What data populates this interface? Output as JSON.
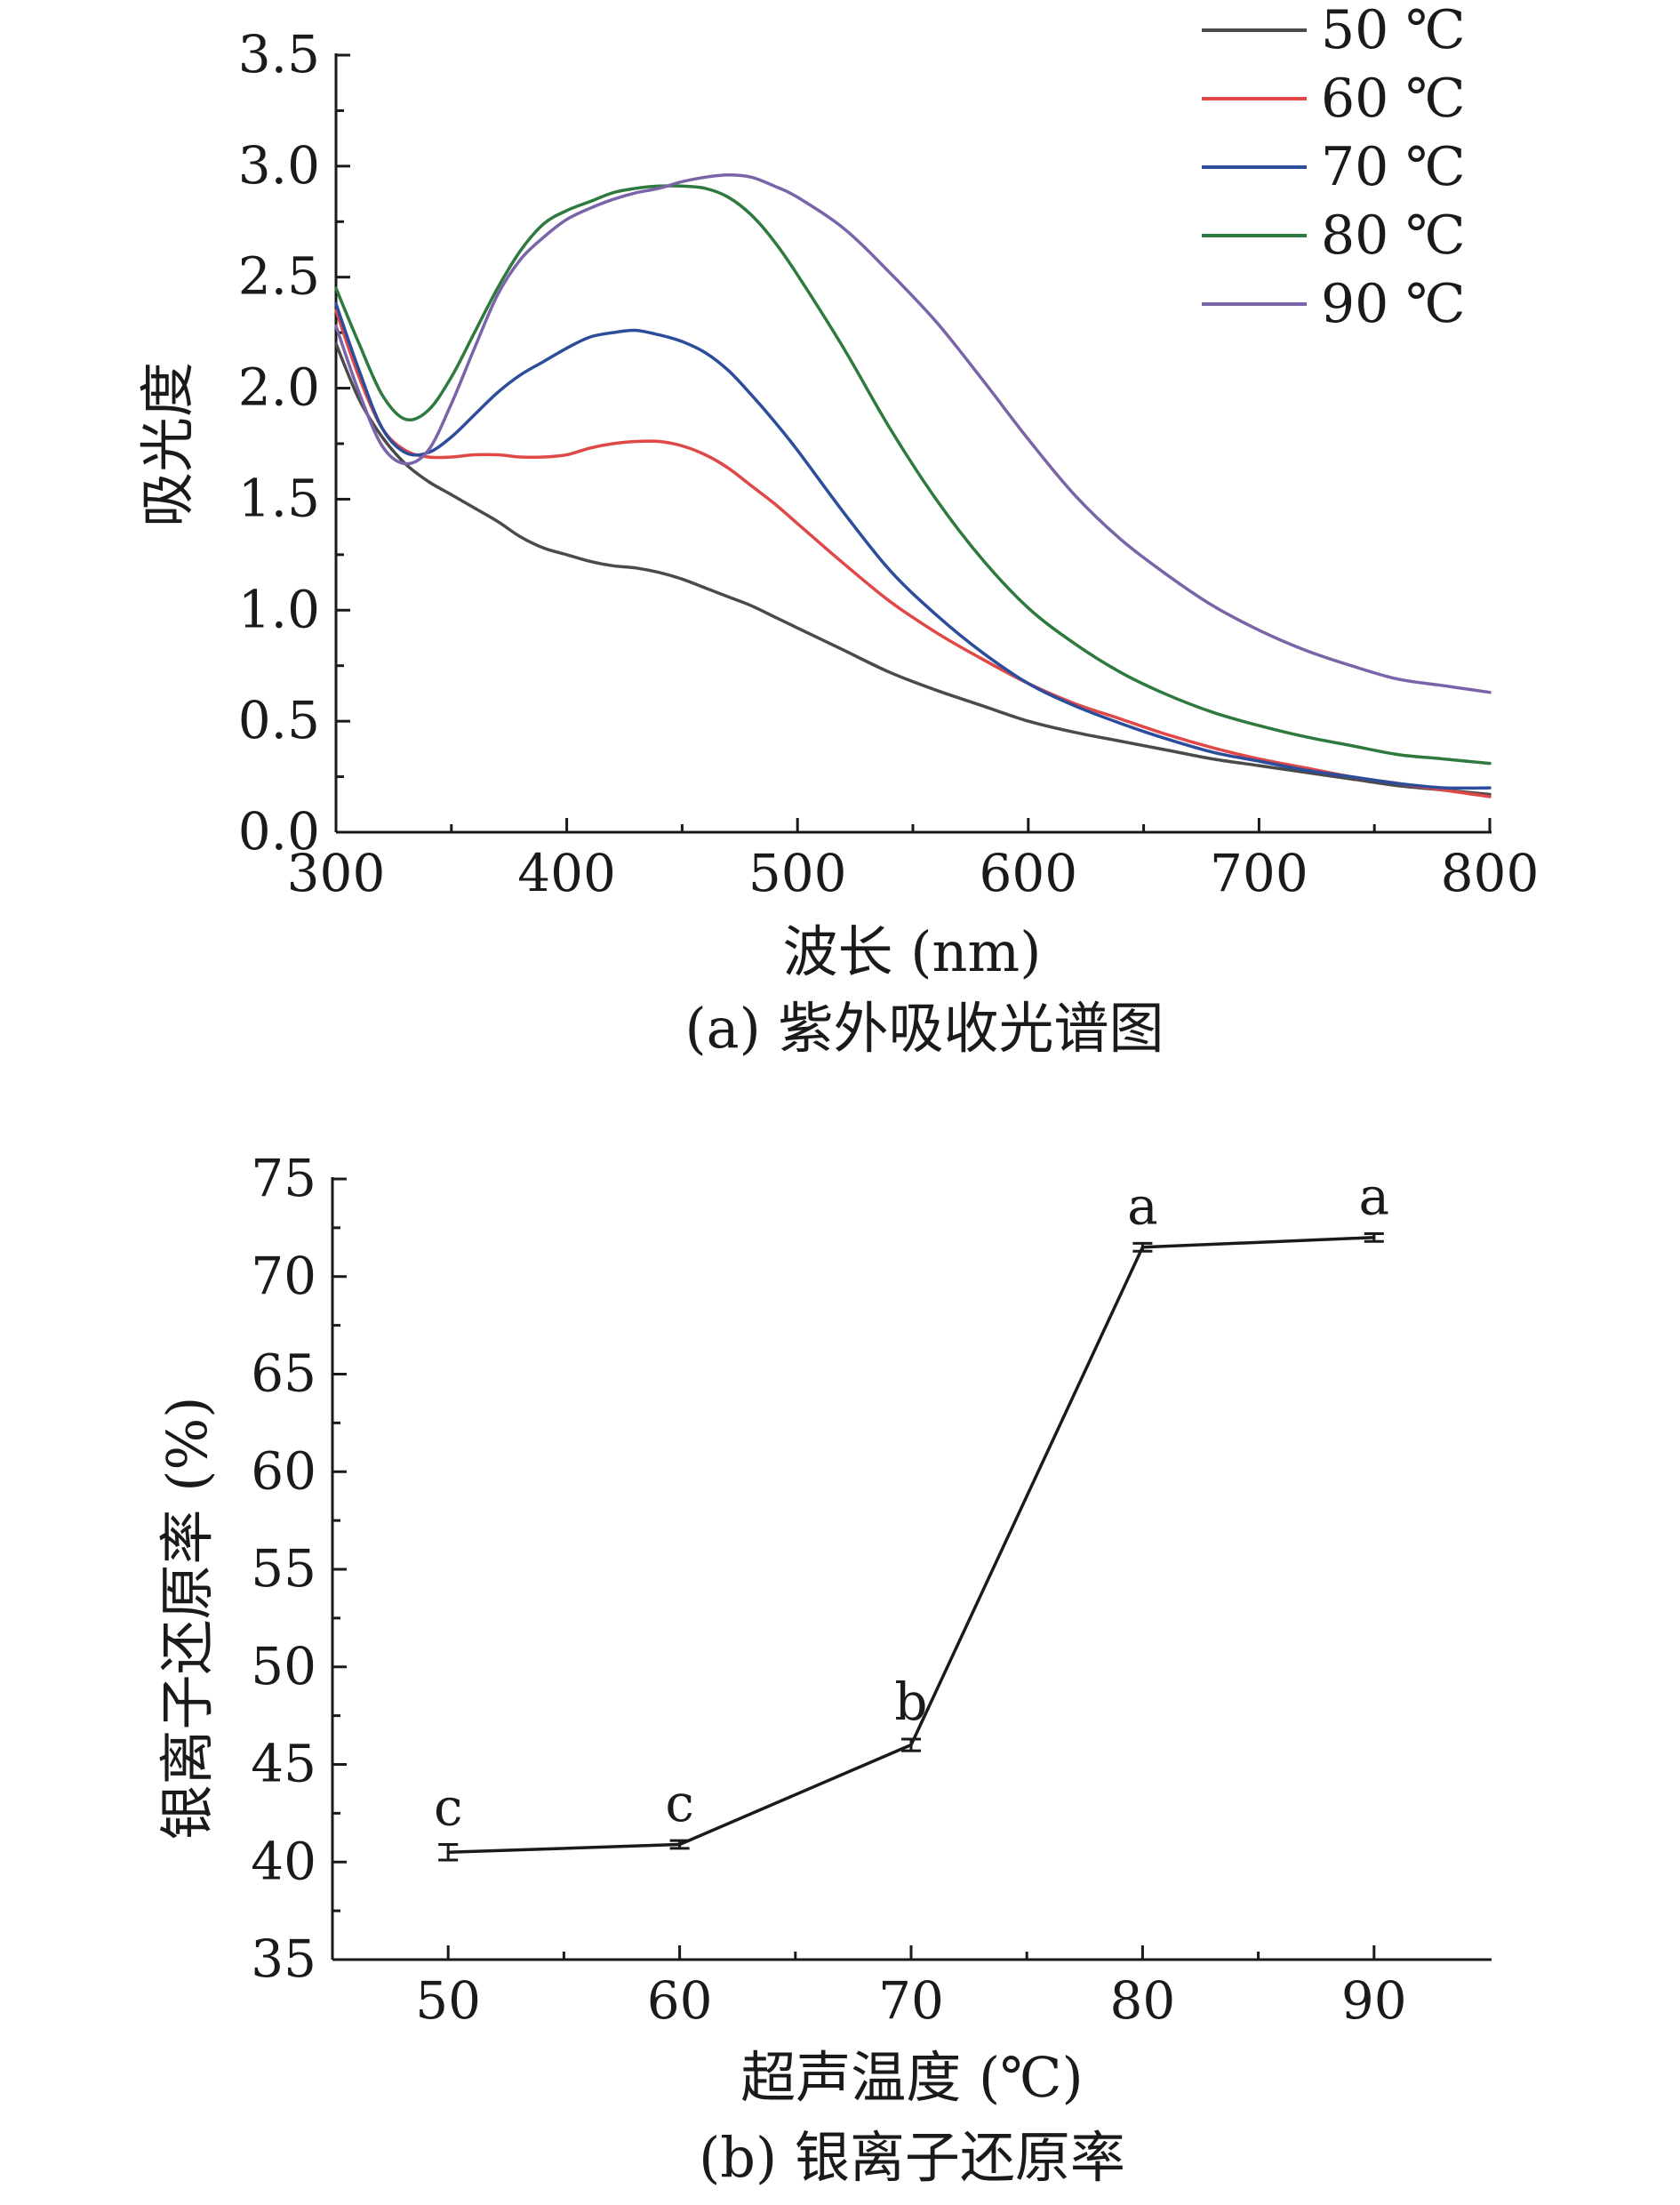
{
  "chart_data": [
    {
      "type": "line",
      "caption": "(a) 紫外吸收光谱图",
      "xlabel": "波长 (nm)",
      "ylabel": "吸光度",
      "xlim": [
        300,
        800
      ],
      "ylim": [
        0,
        3.5
      ],
      "xticks": [
        "300",
        "400",
        "500",
        "600",
        "700",
        "800"
      ],
      "yticks": [
        "0.0",
        "0.5",
        "1.0",
        "1.5",
        "2.0",
        "2.5",
        "3.0",
        "3.5"
      ],
      "legend_position": "top-right",
      "grid": false,
      "series": [
        {
          "name": "50 ℃",
          "color": "#4a4a4a",
          "x": [
            300,
            310,
            320,
            330,
            340,
            350,
            360,
            370,
            380,
            390,
            400,
            410,
            420,
            430,
            440,
            450,
            460,
            470,
            480,
            490,
            500,
            520,
            540,
            560,
            580,
            600,
            620,
            640,
            660,
            680,
            700,
            720,
            740,
            760,
            780,
            800
          ],
          "y": [
            2.2,
            1.95,
            1.78,
            1.66,
            1.58,
            1.52,
            1.46,
            1.4,
            1.33,
            1.28,
            1.25,
            1.22,
            1.2,
            1.19,
            1.17,
            1.14,
            1.1,
            1.06,
            1.02,
            0.97,
            0.92,
            0.82,
            0.72,
            0.64,
            0.57,
            0.5,
            0.45,
            0.41,
            0.37,
            0.33,
            0.3,
            0.27,
            0.24,
            0.21,
            0.19,
            0.17
          ]
        },
        {
          "name": "60 ℃",
          "color": "#e04848",
          "x": [
            300,
            310,
            320,
            330,
            340,
            350,
            360,
            370,
            380,
            390,
            400,
            410,
            420,
            430,
            440,
            450,
            460,
            470,
            480,
            490,
            500,
            520,
            540,
            560,
            580,
            600,
            620,
            640,
            660,
            680,
            700,
            720,
            740,
            760,
            780,
            800
          ],
          "y": [
            2.35,
            2.05,
            1.82,
            1.72,
            1.69,
            1.69,
            1.7,
            1.7,
            1.69,
            1.69,
            1.7,
            1.73,
            1.75,
            1.76,
            1.76,
            1.74,
            1.7,
            1.64,
            1.56,
            1.48,
            1.39,
            1.21,
            1.04,
            0.9,
            0.78,
            0.67,
            0.58,
            0.51,
            0.44,
            0.38,
            0.33,
            0.29,
            0.25,
            0.22,
            0.19,
            0.16
          ]
        },
        {
          "name": "70 ℃",
          "color": "#2c4d9c",
          "x": [
            300,
            310,
            320,
            330,
            340,
            350,
            360,
            370,
            380,
            390,
            400,
            410,
            420,
            430,
            440,
            450,
            460,
            470,
            480,
            490,
            500,
            520,
            540,
            560,
            580,
            600,
            620,
            640,
            660,
            680,
            700,
            720,
            740,
            760,
            780,
            800
          ],
          "y": [
            2.38,
            2.08,
            1.82,
            1.71,
            1.71,
            1.78,
            1.88,
            1.98,
            2.06,
            2.12,
            2.18,
            2.23,
            2.25,
            2.26,
            2.24,
            2.21,
            2.16,
            2.08,
            1.97,
            1.85,
            1.72,
            1.44,
            1.18,
            0.98,
            0.81,
            0.67,
            0.57,
            0.49,
            0.42,
            0.36,
            0.32,
            0.28,
            0.25,
            0.22,
            0.2,
            0.2
          ]
        },
        {
          "name": "80 ℃",
          "color": "#2e7a3e",
          "x": [
            300,
            310,
            320,
            330,
            340,
            350,
            360,
            370,
            380,
            390,
            400,
            410,
            420,
            430,
            440,
            450,
            460,
            470,
            480,
            490,
            500,
            520,
            540,
            560,
            580,
            600,
            620,
            640,
            660,
            680,
            700,
            720,
            740,
            760,
            780,
            800
          ],
          "y": [
            2.45,
            2.2,
            1.97,
            1.86,
            1.9,
            2.05,
            2.25,
            2.45,
            2.62,
            2.74,
            2.8,
            2.84,
            2.88,
            2.9,
            2.91,
            2.91,
            2.9,
            2.86,
            2.78,
            2.66,
            2.51,
            2.18,
            1.82,
            1.5,
            1.23,
            1.01,
            0.85,
            0.72,
            0.62,
            0.54,
            0.48,
            0.43,
            0.39,
            0.35,
            0.33,
            0.31
          ]
        },
        {
          "name": "90 ℃",
          "color": "#7a64a8",
          "x": [
            300,
            310,
            320,
            330,
            340,
            350,
            360,
            370,
            380,
            390,
            400,
            410,
            420,
            430,
            440,
            450,
            460,
            470,
            480,
            490,
            500,
            520,
            540,
            560,
            580,
            600,
            620,
            640,
            660,
            680,
            700,
            720,
            740,
            760,
            780,
            800
          ],
          "y": [
            2.28,
            1.98,
            1.74,
            1.66,
            1.72,
            1.93,
            2.18,
            2.42,
            2.58,
            2.68,
            2.76,
            2.81,
            2.85,
            2.88,
            2.9,
            2.93,
            2.95,
            2.96,
            2.95,
            2.91,
            2.86,
            2.72,
            2.52,
            2.3,
            2.04,
            1.77,
            1.52,
            1.32,
            1.16,
            1.02,
            0.91,
            0.82,
            0.75,
            0.69,
            0.66,
            0.63
          ]
        }
      ]
    },
    {
      "type": "line",
      "caption": "(b) 银离子还原率",
      "xlabel": "超声温度 (℃)",
      "ylabel": "银离子还原率 (%)",
      "xlim": [
        45,
        95
      ],
      "ylim": [
        35,
        75
      ],
      "xticks": [
        "50",
        "60",
        "70",
        "80",
        "90"
      ],
      "yticks": [
        "35",
        "40",
        "45",
        "50",
        "55",
        "60",
        "65",
        "70",
        "75"
      ],
      "grid": false,
      "series": [
        {
          "color": "#1a1a1a",
          "x": [
            50,
            60,
            70,
            80,
            90
          ],
          "y": [
            40.5,
            40.9,
            46.0,
            71.5,
            72.0
          ],
          "error": [
            0.4,
            0.2,
            0.3,
            0.2,
            0.2
          ],
          "labels": [
            "c",
            "c",
            "b",
            "a",
            "a"
          ]
        }
      ]
    }
  ]
}
